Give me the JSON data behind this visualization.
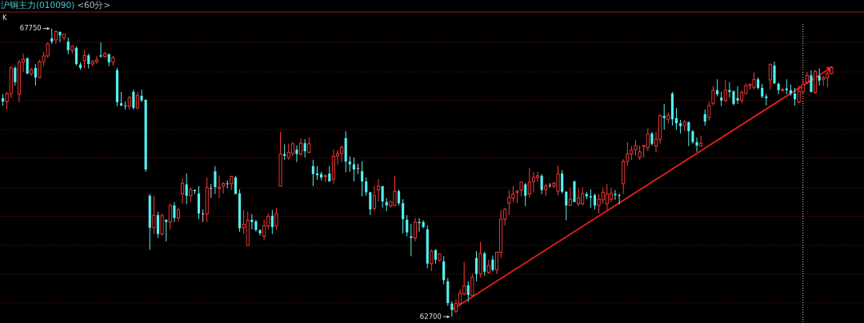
{
  "chart_data": {
    "type": "candlestick",
    "title": "沪铜主力(010090)",
    "subtitle": "<60分>",
    "annotations": [
      "K",
      "67750",
      "62700"
    ],
    "ylim": [
      62590,
      68040
    ],
    "yticks": [
      {
        "value": 67510,
        "label": null
      },
      {
        "value": 66990,
        "label": null
      },
      {
        "value": 66490,
        "label": null
      },
      {
        "value": 65980,
        "label": null
      },
      {
        "value": 65480,
        "label": null
      },
      {
        "value": 64960,
        "label": null
      },
      {
        "value": 64460,
        "label": null
      },
      {
        "value": 63950,
        "label": null
      },
      {
        "value": 63450,
        "label": null
      },
      {
        "value": 62940,
        "label": null
      }
    ],
    "grid": "y",
    "categories": [
      null,
      null,
      null,
      null,
      null,
      null,
      null,
      null,
      null,
      null,
      null,
      null,
      null,
      null,
      null,
      null,
      null,
      null,
      null,
      null,
      null,
      null,
      null,
      null,
      null,
      null,
      null,
      null,
      null,
      null,
      null,
      null,
      null,
      null,
      null,
      null,
      null,
      null,
      null,
      null,
      null,
      null,
      null,
      null,
      null,
      null,
      null,
      null,
      null,
      null,
      null,
      null,
      null,
      null,
      null,
      null,
      null,
      null,
      null,
      null,
      null,
      null,
      null,
      null,
      null,
      null,
      null,
      null,
      null,
      null,
      null,
      null,
      null,
      null,
      null,
      null,
      null,
      null,
      null,
      null,
      null,
      null,
      null,
      null,
      null,
      null,
      null,
      null,
      null,
      null,
      null,
      null,
      null,
      null,
      null,
      null,
      null,
      null,
      null,
      null,
      null,
      null,
      null,
      null,
      null,
      null,
      null,
      null,
      null,
      null,
      null,
      null,
      null,
      null,
      null,
      null,
      null,
      null,
      null,
      null,
      null,
      null,
      null,
      null,
      null,
      null,
      null,
      null,
      null,
      null,
      null,
      null,
      null,
      null,
      null,
      null,
      null,
      null,
      null,
      null,
      null,
      null,
      null,
      null,
      null,
      null,
      null,
      null,
      null,
      null,
      null,
      null,
      null,
      null,
      null,
      null,
      null,
      null,
      null,
      null,
      null,
      null,
      null,
      null,
      null,
      null,
      null,
      null,
      null,
      null,
      null,
      null,
      null,
      null,
      null,
      null,
      null,
      null,
      null,
      null,
      null,
      null,
      null,
      null,
      null,
      null,
      null,
      null,
      null,
      null,
      null,
      null,
      null,
      null,
      null,
      null,
      null,
      null,
      null,
      null,
      null,
      null,
      null,
      null
    ],
    "ohlc": [
      [
        66530,
        66600,
        66400,
        66470
      ],
      [
        66470,
        66640,
        66330,
        66610
      ],
      [
        66610,
        67090,
        66540,
        67060
      ],
      [
        67060,
        67090,
        66750,
        66810
      ],
      [
        66600,
        67200,
        66460,
        67160
      ],
      [
        67160,
        67310,
        66990,
        67210
      ],
      [
        67230,
        67240,
        66950,
        66960
      ],
      [
        66960,
        67060,
        66920,
        67030
      ],
      [
        67060,
        67130,
        66750,
        66890
      ],
      [
        66890,
        67200,
        66880,
        67170
      ],
      [
        67170,
        67340,
        67090,
        67270
      ],
      [
        67270,
        67510,
        67240,
        67480
      ],
      [
        67580,
        67750,
        67480,
        67520
      ],
      [
        67550,
        67720,
        67480,
        67700
      ],
      [
        67690,
        67700,
        67510,
        67630
      ],
      [
        67590,
        67660,
        67550,
        67650
      ],
      [
        67520,
        67590,
        67300,
        67370
      ],
      [
        67370,
        67450,
        67310,
        67440
      ],
      [
        67410,
        67440,
        67100,
        67130
      ],
      [
        67120,
        67160,
        67030,
        67060
      ],
      [
        67190,
        67370,
        67050,
        67280
      ],
      [
        67280,
        67310,
        67050,
        67130
      ],
      [
        67130,
        67200,
        67090,
        67170
      ],
      [
        67170,
        67270,
        67130,
        67200
      ],
      [
        67280,
        67510,
        67240,
        67260
      ],
      [
        67260,
        67340,
        67240,
        67310
      ],
      [
        67300,
        67310,
        67090,
        67160
      ],
      [
        67160,
        67270,
        67100,
        67240
      ],
      [
        67020,
        67060,
        66390,
        66460
      ],
      [
        66440,
        66640,
        66390,
        66400
      ],
      [
        66400,
        66470,
        66330,
        66390
      ],
      [
        66390,
        66570,
        66330,
        66540
      ],
      [
        66640,
        66680,
        66330,
        66360
      ],
      [
        66360,
        66640,
        66330,
        66580
      ],
      [
        66570,
        66680,
        66460,
        66490
      ],
      [
        66500,
        66510,
        65240,
        65280
      ],
      [
        64820,
        64850,
        63870,
        64260
      ],
      [
        64260,
        64820,
        64150,
        64480
      ],
      [
        64480,
        64540,
        64080,
        64150
      ],
      [
        64150,
        64510,
        64120,
        64470
      ],
      [
        64400,
        64400,
        64020,
        64360
      ],
      [
        64360,
        64680,
        64230,
        64650
      ],
      [
        64650,
        64710,
        64360,
        64430
      ],
      [
        64430,
        64610,
        64370,
        64570
      ],
      [
        64850,
        65130,
        64680,
        65040
      ],
      [
        65020,
        65210,
        64670,
        64820
      ],
      [
        64820,
        64960,
        64710,
        64930
      ],
      [
        64920,
        64930,
        64850,
        64900
      ],
      [
        64860,
        64990,
        64410,
        64510
      ],
      [
        64500,
        64580,
        64360,
        64500
      ],
      [
        64500,
        65140,
        64360,
        64960
      ],
      [
        64950,
        65030,
        64780,
        64950
      ],
      [
        65250,
        65340,
        64850,
        64970
      ],
      [
        64950,
        65170,
        64780,
        64970
      ],
      [
        64990,
        65060,
        64860,
        65030
      ],
      [
        65030,
        65090,
        64950,
        65030
      ],
      [
        65030,
        65170,
        64920,
        65160
      ],
      [
        65140,
        65170,
        64850,
        64850
      ],
      [
        64860,
        64930,
        64190,
        64250
      ],
      [
        64260,
        64570,
        64150,
        64320
      ],
      [
        63950,
        64540,
        63940,
        64390
      ],
      [
        64400,
        64500,
        64230,
        64360
      ],
      [
        64370,
        64400,
        64190,
        64220
      ],
      [
        64220,
        64230,
        64120,
        64160
      ],
      [
        64110,
        64400,
        64050,
        64290
      ],
      [
        64290,
        64510,
        64230,
        64460
      ],
      [
        64470,
        64570,
        64150,
        64270
      ],
      [
        64290,
        64610,
        64230,
        64510
      ],
      [
        64990,
        65940,
        64990,
        65550
      ],
      [
        65550,
        65720,
        65450,
        65520
      ],
      [
        65490,
        65730,
        65450,
        65580
      ],
      [
        65560,
        65760,
        65520,
        65730
      ],
      [
        65630,
        65700,
        65410,
        65550
      ],
      [
        65550,
        65830,
        65520,
        65740
      ],
      [
        65740,
        65810,
        65490,
        65600
      ],
      [
        65580,
        65840,
        65560,
        65730
      ],
      [
        65340,
        65450,
        64990,
        65200
      ],
      [
        65210,
        65340,
        65100,
        65180
      ],
      [
        65200,
        65240,
        65090,
        65140
      ],
      [
        65160,
        65200,
        65060,
        65170
      ],
      [
        65210,
        65340,
        65070,
        65070
      ],
      [
        65110,
        65630,
        65030,
        65510
      ],
      [
        65520,
        65620,
        65370,
        65560
      ],
      [
        65560,
        65700,
        65410,
        65670
      ],
      [
        65830,
        65950,
        65230,
        65420
      ],
      [
        65420,
        65510,
        65240,
        65370
      ],
      [
        65370,
        65490,
        65070,
        65280
      ],
      [
        65300,
        65380,
        65200,
        65300
      ],
      [
        65250,
        65420,
        64810,
        65070
      ],
      [
        65070,
        65140,
        64820,
        64880
      ],
      [
        64880,
        64890,
        64480,
        64580
      ],
      [
        64600,
        64990,
        64550,
        64820
      ],
      [
        64920,
        65110,
        64720,
        64990
      ],
      [
        64990,
        64990,
        64610,
        64720
      ],
      [
        64710,
        64780,
        64550,
        64650
      ],
      [
        64640,
        64720,
        64610,
        64720
      ],
      [
        64650,
        65170,
        64640,
        64900
      ],
      [
        64900,
        64930,
        64650,
        64690
      ],
      [
        64690,
        64760,
        64160,
        64410
      ],
      [
        64400,
        64480,
        64110,
        64180
      ],
      [
        64110,
        64330,
        63760,
        64080
      ],
      [
        64080,
        64430,
        64020,
        64360
      ],
      [
        64360,
        64430,
        64190,
        64340
      ],
      [
        64360,
        64390,
        64250,
        64270
      ],
      [
        64230,
        64300,
        63550,
        63630
      ],
      [
        63630,
        63880,
        63500,
        63850
      ],
      [
        63870,
        63880,
        63630,
        63700
      ],
      [
        63690,
        63810,
        63670,
        63800
      ],
      [
        63670,
        63760,
        63270,
        63340
      ],
      [
        63320,
        63380,
        62890,
        62940
      ],
      [
        62930,
        62970,
        62700,
        62820
      ],
      [
        62800,
        63000,
        62760,
        62930
      ],
      [
        62930,
        63180,
        62890,
        63110
      ],
      [
        63100,
        63660,
        63070,
        63240
      ],
      [
        63250,
        63320,
        62960,
        63080
      ],
      [
        63070,
        63450,
        63060,
        63390
      ],
      [
        63730,
        63850,
        63320,
        63450
      ],
      [
        63450,
        64010,
        63390,
        63810
      ],
      [
        63810,
        63840,
        63420,
        63490
      ],
      [
        63480,
        63700,
        63450,
        63600
      ],
      [
        63700,
        63770,
        63490,
        63520
      ],
      [
        63520,
        63840,
        63450,
        63830
      ],
      [
        63830,
        64570,
        63730,
        64410
      ],
      [
        64410,
        64610,
        64300,
        64580
      ],
      [
        64690,
        64920,
        64480,
        64790
      ],
      [
        64780,
        64990,
        64710,
        64850
      ],
      [
        64880,
        64920,
        64690,
        64900
      ],
      [
        64920,
        65060,
        64810,
        65060
      ],
      [
        65020,
        65040,
        64640,
        64820
      ],
      [
        64850,
        65310,
        64790,
        65060
      ],
      [
        65070,
        65240,
        64880,
        65140
      ],
      [
        65140,
        65240,
        65070,
        65170
      ],
      [
        65170,
        65200,
        64850,
        64920
      ],
      [
        64930,
        65030,
        64820,
        64990
      ],
      [
        65000,
        65040,
        64960,
        65000
      ],
      [
        64990,
        65060,
        64960,
        65040
      ],
      [
        64900,
        65350,
        64830,
        65200
      ],
      [
        65210,
        65270,
        64860,
        64890
      ],
      [
        64890,
        64900,
        64390,
        64650
      ],
      [
        64650,
        64960,
        64640,
        64760
      ],
      [
        65070,
        65090,
        64710,
        64710
      ],
      [
        64680,
        64950,
        64640,
        64780
      ],
      [
        64680,
        64960,
        64650,
        64860
      ],
      [
        64850,
        64890,
        64760,
        64810
      ],
      [
        64810,
        64930,
        64610,
        64790
      ],
      [
        64830,
        64860,
        64580,
        64650
      ],
      [
        64650,
        64850,
        64510,
        64760
      ],
      [
        64750,
        64960,
        64680,
        64880
      ],
      [
        64680,
        65030,
        64570,
        64850
      ],
      [
        64760,
        64960,
        64710,
        64860
      ],
      [
        64850,
        64920,
        64750,
        64830
      ],
      [
        64830,
        64860,
        64670,
        64820
      ],
      [
        65030,
        65460,
        64850,
        65420
      ],
      [
        65420,
        65760,
        65340,
        65550
      ],
      [
        65550,
        65690,
        65450,
        65620
      ],
      [
        65630,
        65800,
        65520,
        65700
      ],
      [
        65490,
        65700,
        65450,
        65590
      ],
      [
        65690,
        65700,
        65490,
        65700
      ],
      [
        65660,
        66000,
        65600,
        65900
      ],
      [
        65910,
        65940,
        65700,
        65730
      ],
      [
        65690,
        65940,
        65580,
        65810
      ],
      [
        65810,
        66250,
        65730,
        66220
      ],
      [
        66220,
        66430,
        65980,
        66180
      ],
      [
        66160,
        66280,
        66090,
        66230
      ],
      [
        66610,
        66640,
        66050,
        66160
      ],
      [
        66180,
        66360,
        65980,
        66090
      ],
      [
        66090,
        66150,
        65910,
        66040
      ],
      [
        66050,
        66150,
        65950,
        66110
      ],
      [
        66110,
        66120,
        65690,
        65950
      ],
      [
        65950,
        65970,
        65730,
        65760
      ],
      [
        65760,
        65840,
        65590,
        65700
      ],
      [
        65690,
        65870,
        65690,
        65740
      ],
      [
        66250,
        66330,
        66050,
        66120
      ],
      [
        66190,
        66470,
        66140,
        66400
      ],
      [
        66440,
        66740,
        66400,
        66670
      ],
      [
        66670,
        66860,
        66560,
        66600
      ],
      [
        66540,
        66640,
        66390,
        66490
      ],
      [
        66490,
        66850,
        66460,
        66670
      ],
      [
        66670,
        66810,
        66540,
        66640
      ],
      [
        66650,
        66670,
        66400,
        66430
      ],
      [
        66530,
        66740,
        66430,
        66490
      ],
      [
        66490,
        66670,
        66440,
        66630
      ],
      [
        66610,
        66790,
        66600,
        66750
      ],
      [
        66750,
        66790,
        66680,
        66770
      ],
      [
        66720,
        66980,
        66680,
        66860
      ],
      [
        66860,
        66890,
        66680,
        66710
      ],
      [
        66710,
        66780,
        66530,
        66560
      ],
      [
        66560,
        66600,
        66400,
        66530
      ],
      [
        66850,
        67140,
        66680,
        67120
      ],
      [
        67100,
        67170,
        66780,
        66790
      ],
      [
        66780,
        66810,
        66600,
        66670
      ],
      [
        66670,
        66710,
        66640,
        66680
      ],
      [
        66700,
        66860,
        66600,
        66670
      ],
      [
        66670,
        66770,
        66570,
        66610
      ],
      [
        66610,
        66710,
        66400,
        66510
      ],
      [
        66460,
        66750,
        66440,
        66650
      ],
      [
        66640,
        66860,
        66610,
        66770
      ],
      [
        66810,
        66990,
        66780,
        66930
      ],
      [
        66930,
        67020,
        66630,
        66640
      ],
      [
        66630,
        67030,
        66610,
        67000
      ],
      [
        66920,
        67050,
        66750,
        66840
      ],
      [
        66860,
        66920,
        66750,
        66890
      ],
      [
        66890,
        66990,
        66720,
        66960
      ],
      [
        66960,
        67090,
        66950,
        67070
      ]
    ],
    "series": [
      {
        "type": "line",
        "color": "#e8201c",
        "values": [
          null,
          null,
          null,
          null,
          null,
          null,
          null,
          null,
          null,
          null,
          null,
          null,
          null,
          null,
          null,
          null,
          null,
          null,
          null,
          null,
          null,
          null,
          null,
          null,
          null,
          null,
          null,
          null,
          null,
          null,
          null,
          null,
          null,
          null,
          null,
          null,
          null,
          null,
          null,
          null,
          null,
          null,
          null,
          null,
          null,
          null,
          null,
          null,
          null,
          null,
          null,
          null,
          null,
          null,
          null,
          null,
          null,
          null,
          null,
          null,
          null,
          null,
          null,
          null,
          null,
          null,
          null,
          null,
          null,
          null,
          null,
          null,
          null,
          null,
          null,
          null,
          null,
          null,
          null,
          null,
          null,
          null,
          null,
          null,
          null,
          null,
          null,
          null,
          null,
          null,
          null,
          null,
          null,
          null,
          null,
          null,
          null,
          null,
          null,
          null,
          null,
          null,
          null,
          null,
          null,
          null,
          null,
          null,
          null,
          null,
          62820,
          null,
          null,
          null,
          null,
          null,
          null,
          null,
          null,
          null,
          null,
          null,
          null,
          null,
          null,
          null,
          null,
          null,
          null,
          null,
          null,
          null,
          null,
          null,
          null,
          null,
          null,
          null,
          null,
          null,
          null,
          null,
          null,
          null,
          null,
          null,
          null,
          null,
          null,
          null,
          null,
          null,
          null,
          null,
          null,
          null,
          null,
          null,
          null,
          null,
          null,
          null,
          null,
          null,
          null,
          null,
          null,
          null,
          null,
          null,
          null,
          null,
          null,
          null,
          null,
          null,
          null,
          null,
          null,
          null,
          null,
          null,
          null,
          null,
          null,
          null,
          null,
          null,
          null,
          null,
          null,
          null,
          null,
          null,
          null,
          null,
          null,
          null,
          null,
          null,
          null,
          null,
          null,
          67070
        ]
      }
    ]
  }
}
